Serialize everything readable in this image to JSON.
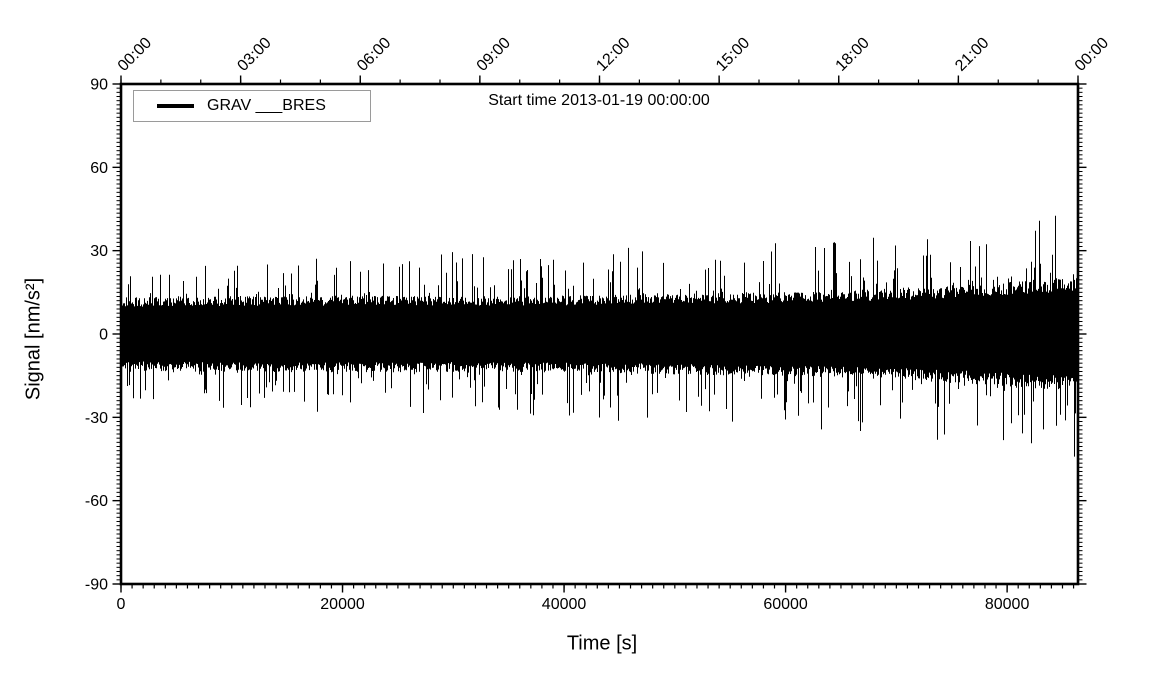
{
  "figure": {
    "background": "#ffffff",
    "frame_color": "#000000"
  },
  "chart_data": {
    "type": "line",
    "title": "Start time 2013-01-19 00:00:00",
    "xlabel": "Time [s]",
    "ylabel": "Signal [nm/s²]",
    "legend": {
      "position": "top-left",
      "entries": [
        {
          "label": "GRAV ___BRES",
          "color": "#000000"
        }
      ]
    },
    "xlim": [
      0,
      86400
    ],
    "ylim": [
      -90,
      90
    ],
    "grid": false,
    "axes": {
      "x_bottom": {
        "major_ticks": [
          0,
          20000,
          40000,
          60000,
          80000
        ],
        "minor_interval": 1000,
        "tick_direction": "out"
      },
      "x_top": {
        "unit": "clock time HH:MM",
        "major_interval_s": 10800,
        "minor_interval_s": 3600,
        "labels": [
          "00:00",
          "03:00",
          "06:00",
          "09:00",
          "12:00",
          "15:00",
          "18:00",
          "21:00",
          "00:00"
        ],
        "label_rotation_deg": -45,
        "tick_direction": "out"
      },
      "y_left": {
        "major_ticks": [
          -90,
          -60,
          -30,
          0,
          30,
          60,
          90
        ],
        "minor_interval": 1.5,
        "tick_direction": "out"
      },
      "y_right": {
        "mirror_ticks": true,
        "labels": false
      }
    },
    "series": [
      {
        "name": "GRAV ___BRES",
        "color": "#000000",
        "description": "zero-mean broadband noise trace; dense solid band with sparse taller spikes, amplitude slowly growing with time"
      }
    ],
    "noise_envelope": {
      "time_s": [
        0,
        8640,
        17280,
        25920,
        34560,
        43200,
        51840,
        60480,
        69120,
        77760,
        86400
      ],
      "core_amplitude": [
        11.5,
        11.8,
        12.0,
        12.0,
        11.8,
        12.2,
        12.8,
        13.2,
        14.2,
        15.8,
        18.0
      ],
      "peak_amplitude": [
        26.0,
        27.0,
        28.5,
        30.0,
        29.0,
        31.0,
        33.0,
        34.0,
        36.5,
        40.5,
        45.0
      ]
    },
    "seed": 20130119
  }
}
